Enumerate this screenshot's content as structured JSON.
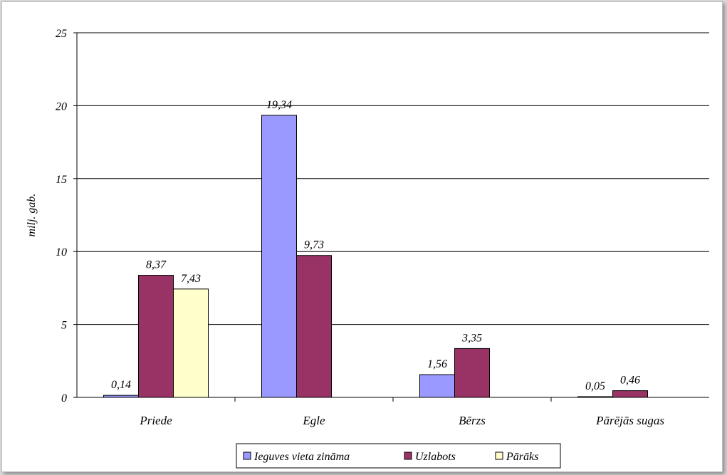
{
  "chart_data": {
    "type": "bar",
    "title": "",
    "xlabel": "",
    "ylabel": "milj. gab.",
    "ylim": [
      0,
      25
    ],
    "yticks": [
      0,
      5,
      10,
      15,
      20,
      25
    ],
    "yticklabels": [
      "0",
      "5",
      "10",
      "15",
      "20",
      "25"
    ],
    "grid": true,
    "legend_position": "bottom",
    "categories": [
      "Priede",
      "Egle",
      "Bērzs",
      "Pārējās sugas"
    ],
    "series": [
      {
        "name": "Ieguves vieta zināma",
        "color": "#9999ff",
        "values": [
          0.14,
          19.34,
          1.56,
          0.05
        ],
        "labels": [
          "0,14",
          "19,34",
          "1,56",
          "0,05"
        ]
      },
      {
        "name": "Uzlabots",
        "color": "#993366",
        "values": [
          8.37,
          9.73,
          3.35,
          0.46
        ],
        "labels": [
          "8,37",
          "9,73",
          "3,35",
          "0,46"
        ]
      },
      {
        "name": "Pārāks",
        "color": "#ffffcc",
        "values": [
          7.43,
          null,
          null,
          null
        ],
        "labels": [
          "7,43",
          null,
          null,
          null
        ]
      }
    ]
  }
}
